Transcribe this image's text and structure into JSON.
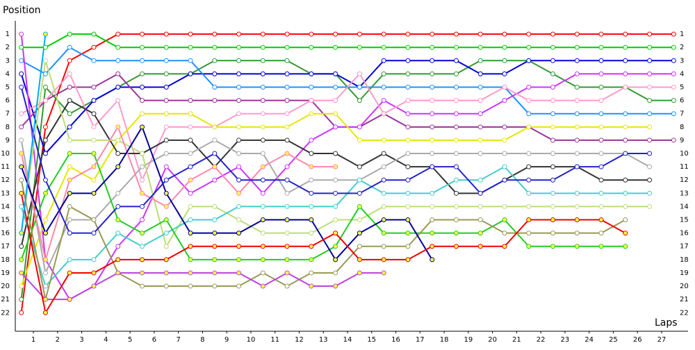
{
  "chart_data": {
    "type": "line",
    "y_label": "Position",
    "x_label": "Laps",
    "x": [
      0,
      1,
      2,
      3,
      4,
      5,
      6,
      7,
      8,
      9,
      10,
      11,
      12,
      13,
      14,
      15,
      16,
      17,
      18,
      19,
      20,
      21,
      22,
      23,
      24,
      25,
      26,
      27
    ],
    "xlim": [
      -0.25,
      27.45
    ],
    "ylim": [
      23.4,
      0
    ],
    "xticks": [
      {
        "value": 0.5,
        "label": "1"
      },
      {
        "value": 1.5,
        "label": "2"
      },
      {
        "value": 2.5,
        "label": "3"
      },
      {
        "value": 3.5,
        "label": "4"
      },
      {
        "value": 4.5,
        "label": "5"
      },
      {
        "value": 5.5,
        "label": "6"
      },
      {
        "value": 6.5,
        "label": "7"
      },
      {
        "value": 7.5,
        "label": "8"
      },
      {
        "value": 8.5,
        "label": "9"
      },
      {
        "value": 9.5,
        "label": "10"
      },
      {
        "value": 10.5,
        "label": "11"
      },
      {
        "value": 11.5,
        "label": "12"
      },
      {
        "value": 12.5,
        "label": "13"
      },
      {
        "value": 13.5,
        "label": "14"
      },
      {
        "value": 14.5,
        "label": "15"
      },
      {
        "value": 15.5,
        "label": "16"
      },
      {
        "value": 16.5,
        "label": "17"
      },
      {
        "value": 17.5,
        "label": "18"
      },
      {
        "value": 18.5,
        "label": "19"
      },
      {
        "value": 19.5,
        "label": "20"
      },
      {
        "value": 20.5,
        "label": "21"
      },
      {
        "value": 21.5,
        "label": "22"
      },
      {
        "value": 22.5,
        "label": "23"
      },
      {
        "value": 23.5,
        "label": "24"
      },
      {
        "value": 24.5,
        "label": "25"
      },
      {
        "value": 25.5,
        "label": "26"
      },
      {
        "value": 26.5,
        "label": "27"
      }
    ],
    "yticks": [
      1,
      2,
      3,
      4,
      5,
      6,
      7,
      8,
      9,
      10,
      11,
      12,
      13,
      14,
      15,
      16,
      17,
      18,
      19,
      20,
      21,
      22
    ],
    "series": [
      {
        "color": "#ff0000",
        "marker_fill": "#ffffff",
        "values": [
          22,
          8,
          3,
          2,
          1,
          1,
          1,
          1,
          1,
          1,
          1,
          1,
          1,
          1,
          1,
          1,
          1,
          1,
          1,
          1,
          1,
          1,
          1,
          1,
          1,
          1,
          1,
          1
        ]
      },
      {
        "color": "#00cc00",
        "marker_fill": "#ffffff",
        "values": [
          2,
          2,
          1,
          1,
          2,
          2,
          2,
          2,
          2,
          2,
          2,
          2,
          2,
          2,
          2,
          2,
          2,
          2,
          2,
          2,
          2,
          2,
          2,
          2,
          2,
          2,
          2,
          2
        ]
      },
      {
        "color": "#339933",
        "marker_fill": "#ffffff",
        "values": [
          21,
          5,
          7,
          6,
          5,
          4,
          4,
          4,
          3,
          3,
          3,
          3,
          4,
          4,
          6,
          4,
          4,
          4,
          4,
          3,
          3,
          3,
          4,
          5,
          5,
          5,
          6,
          6
        ]
      },
      {
        "color": "#0000dd",
        "marker_fill": "#ffffff",
        "values": [
          4,
          10,
          8,
          6,
          5,
          5,
          5,
          4,
          4,
          4,
          4,
          4,
          4,
          4,
          5,
          3,
          3,
          3,
          3,
          4,
          4,
          3,
          3,
          3,
          3,
          3,
          3,
          3
        ]
      },
      {
        "color": "#1e90ff",
        "marker_fill": "#ffffff",
        "values": [
          3,
          4,
          2,
          3,
          3,
          3,
          3,
          3,
          5,
          5,
          5,
          5,
          5,
          5,
          5,
          5,
          5,
          5,
          5,
          5,
          5,
          7,
          7,
          7,
          7,
          7,
          7,
          7
        ]
      },
      {
        "color": "#993399",
        "marker_fill": "#ffffff",
        "values": [
          8,
          6,
          5,
          5,
          4,
          6,
          6,
          6,
          6,
          6,
          6,
          6,
          6,
          8,
          8,
          7,
          8,
          8,
          8,
          8,
          8,
          8,
          9,
          9,
          9,
          9,
          9,
          9
        ]
      },
      {
        "color": "#cc33ff",
        "marker_fill": "#ffffff",
        "values": [
          1,
          18,
          21,
          20,
          17,
          15,
          11,
          13,
          12,
          11,
          13,
          11,
          9,
          8,
          8,
          6,
          7,
          7,
          7,
          7,
          6,
          5,
          5,
          4,
          4,
          4,
          4,
          4
        ]
      },
      {
        "color": "#ff99cc",
        "marker_fill": "#ffffff",
        "values": [
          7,
          6,
          4,
          8,
          6,
          12,
          8,
          8,
          8,
          7,
          7,
          7,
          6,
          6,
          4,
          7,
          6,
          6,
          6,
          6,
          5,
          6,
          6,
          6,
          6,
          5,
          5,
          5
        ]
      },
      {
        "color": "#e6e600",
        "marker_fill": "#ffffff",
        "values": [
          20,
          15,
          11,
          12,
          9,
          7,
          7,
          7,
          8,
          8,
          8,
          8,
          7,
          7,
          9,
          9,
          9,
          9,
          9,
          9,
          9,
          8,
          8,
          8,
          8,
          8,
          8,
          null
        ]
      },
      {
        "color": "#333333",
        "marker_fill": "#ffffff",
        "values": [
          17,
          9,
          6,
          7,
          10,
          10,
          9,
          9,
          11,
          9,
          9,
          9,
          10,
          10,
          11,
          10,
          11,
          11,
          13,
          13,
          12,
          11,
          11,
          11,
          12,
          12,
          12,
          null
        ]
      },
      {
        "color": "#aaaaaa",
        "marker_fill": "#ffffff",
        "values": [
          9,
          19,
          15,
          15,
          13,
          11,
          10,
          10,
          9,
          10,
          10,
          13,
          12,
          12,
          12,
          11,
          10,
          10,
          10,
          10,
          10,
          10,
          10,
          10,
          10,
          10,
          11,
          null
        ]
      },
      {
        "color": "#bbdd77",
        "marker_fill": "#ffffff",
        "values": [
          16,
          3,
          9,
          9,
          9,
          10,
          17,
          14,
          14,
          15,
          16,
          16,
          16,
          15,
          15,
          14,
          14,
          14,
          14,
          14,
          14,
          14,
          14,
          14,
          14,
          14,
          14,
          null
        ]
      },
      {
        "color": "#44cccc",
        "marker_fill": "#ffffff",
        "values": [
          14,
          20,
          18,
          18,
          16,
          17,
          16,
          15,
          15,
          14,
          14,
          14,
          14,
          14,
          12,
          13,
          13,
          13,
          12,
          12,
          11,
          13,
          13,
          13,
          13,
          13,
          13,
          null
        ]
      },
      {
        "color": "#22cc22",
        "marker_fill": "#ffff44",
        "values": [
          18,
          13,
          10,
          10,
          15,
          16,
          15,
          18,
          18,
          18,
          18,
          18,
          18,
          17,
          14,
          16,
          16,
          16,
          16,
          16,
          15,
          17,
          17,
          17,
          17,
          17,
          null,
          null
        ]
      },
      {
        "color": "#999955",
        "marker_fill": "#ffffff",
        "values": [
          12,
          21,
          14,
          15,
          19,
          20,
          20,
          20,
          20,
          20,
          19,
          20,
          19,
          19,
          17,
          17,
          17,
          15,
          15,
          15,
          16,
          16,
          16,
          16,
          16,
          15,
          null,
          null
        ]
      },
      {
        "color": "#bb44dd",
        "marker_fill": "#ffff44",
        "values": [
          19,
          21,
          21,
          20,
          19,
          19,
          19,
          19,
          19,
          19,
          20,
          19,
          20,
          20,
          19,
          19,
          null,
          null,
          null,
          null,
          null,
          null,
          null,
          null,
          null,
          null,
          null,
          null
        ]
      },
      {
        "color": "#ff88aa",
        "marker_fill": "#ffff44",
        "values": [
          10,
          18,
          12,
          11,
          8,
          13,
          14,
          12,
          11,
          13,
          11,
          10,
          11,
          11,
          null,
          null,
          null,
          null,
          null,
          null,
          null,
          null,
          null,
          null,
          null,
          null,
          null,
          null
        ]
      },
      {
        "color": "#000099",
        "marker_fill": "#ffff44",
        "values": [
          11,
          16,
          13,
          13,
          11,
          8,
          13,
          16,
          16,
          16,
          15,
          15,
          15,
          18,
          16,
          15,
          15,
          18,
          null,
          null,
          null,
          null,
          null,
          null,
          null,
          null,
          null,
          null
        ]
      },
      {
        "color": "#2222cc",
        "marker_fill": "#ffffff",
        "values": [
          5,
          12,
          16,
          16,
          14,
          14,
          12,
          11,
          10,
          12,
          12,
          12,
          13,
          13,
          13,
          12,
          12,
          11,
          11,
          13,
          12,
          12,
          12,
          11,
          11,
          10,
          10,
          null
        ]
      },
      {
        "color": "#ee0000",
        "marker_fill": "#ffff44",
        "values": [
          13,
          22,
          19,
          19,
          18,
          18,
          18,
          17,
          17,
          17,
          17,
          17,
          17,
          16,
          18,
          18,
          18,
          17,
          17,
          17,
          17,
          15,
          15,
          15,
          15,
          16,
          null,
          null
        ]
      },
      {
        "color": "#00aaff",
        "marker_fill": "#ffff44",
        "values": [
          16,
          1,
          null,
          null,
          null,
          null,
          null,
          null,
          null,
          null,
          null,
          null,
          null,
          null,
          null,
          null,
          null,
          null,
          null,
          null,
          null,
          null,
          null,
          null,
          null,
          null,
          null,
          null
        ]
      }
    ]
  }
}
